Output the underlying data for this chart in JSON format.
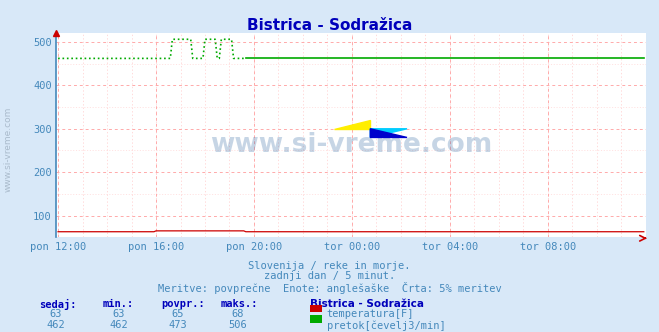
{
  "title": "Bistrica - Sodražica",
  "bg_color": "#d8e8f8",
  "plot_bg_color": "#ffffff",
  "grid_color_major": "#ffaaaa",
  "grid_color_minor": "#ffcccc",
  "xlabel": "",
  "ylabel": "",
  "ylim": [
    50,
    520
  ],
  "yticks": [
    100,
    200,
    300,
    400,
    500
  ],
  "x_labels": [
    "pon 12:00",
    "pon 16:00",
    "pon 20:00",
    "tor 00:00",
    "tor 04:00",
    "tor 08:00"
  ],
  "x_tick_positions": [
    0,
    48,
    96,
    144,
    192,
    240
  ],
  "total_points": 288,
  "title_color": "#0000bb",
  "axis_label_color": "#4488bb",
  "text_color": "#4488bb",
  "left_border_color": "#4488bb",
  "watermark": "www.si-vreme.com",
  "watermark_color": "#4477aa",
  "sub_text1": "Slovenija / reke in morje.",
  "sub_text2": "zadnji dan / 5 minut.",
  "sub_text3": "Meritve: povprečne  Enote: anglešaške  Črta: 5% meritev",
  "footer_title": "Bistrica - Sodražica",
  "footer_headers": [
    "sedaj:",
    "min.:",
    "povpr.:",
    "maks.:"
  ],
  "footer_row1": [
    "63",
    "63",
    "65",
    "68"
  ],
  "footer_row2": [
    "462",
    "462",
    "473",
    "506"
  ],
  "footer_label1": "temperatura[F]",
  "footer_label2": "pretok[čevelj3/min]",
  "color_temp": "#cc0000",
  "color_flow": "#00aa00",
  "temp_flat": 63,
  "temp_bump_start": 48,
  "temp_bump_end": 92,
  "temp_bump_val": 65,
  "flow_base": 462,
  "flow_spike_value": 506,
  "flow_dotted_end": 92,
  "spike1_s": 56,
  "spike1_e": 66,
  "spike2_s": 72,
  "spike2_e": 78,
  "spike3_s": 80,
  "spike3_e": 86,
  "arrow_color": "#cc0000",
  "side_label_color": "#aabbcc"
}
